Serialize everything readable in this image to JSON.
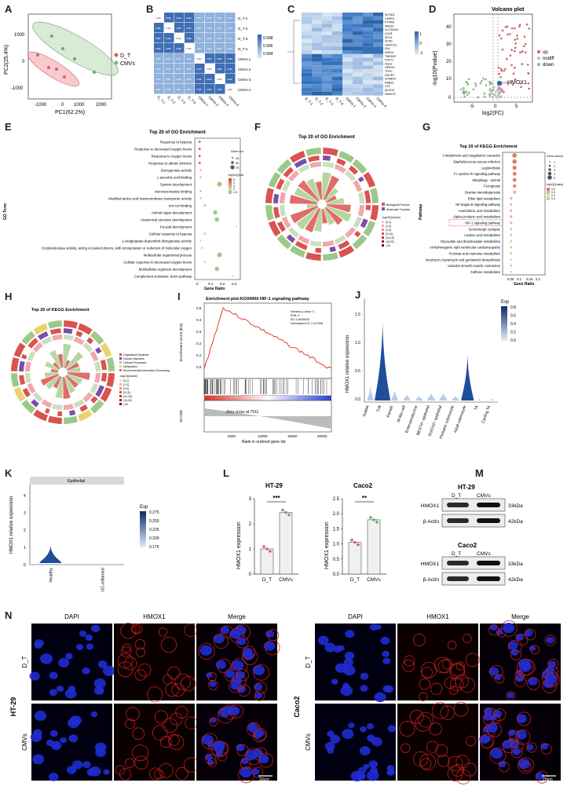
{
  "panels": {
    "A": {
      "label": "A",
      "xlabel": "PC1(62.2%)",
      "ylabel": "PC2(25.4%)",
      "xticks": [
        "-1000",
        "0",
        "1000",
        "2000"
      ],
      "yticks": [
        "1000",
        "0",
        "-1000"
      ],
      "legend": [
        {
          "name": "D_T",
          "color": "#d95f6a"
        },
        {
          "name": "CMVs",
          "color": "#7fb77e"
        }
      ]
    },
    "B": {
      "label": "B",
      "rows": [
        "D_T-1",
        "D_T-2",
        "D_T-3",
        "D_T-4",
        "CMVs-1",
        "CMVs-2",
        "CMVs-3",
        "CMVs-4"
      ],
      "cols": [
        "D_T-1",
        "D_T-2",
        "D_T-3",
        "D_T-4",
        "CMVs-1",
        "CMVs-2",
        "CMVs-3",
        "CMVs-4"
      ],
      "scale": [
        "0.998",
        "0.996",
        "0.994"
      ]
    },
    "C": {
      "label": "C",
      "genes": [
        "SLFN11",
        "CMPK2",
        "PTPRD",
        "FADS2",
        "SLC30A10",
        "LDLR",
        "MT1X",
        "SC5D",
        "HMGCS1",
        "IDI1",
        "INSIG1",
        "TMEM97",
        "FDFT1",
        "SQLE",
        "HMOX1",
        "TFRC",
        "DHCR7",
        "STARD4",
        "RAB32",
        "LSS",
        "ALDOC",
        "HMGCR"
      ],
      "cols": [
        "D_T-1",
        "D_T-2",
        "D_T-3",
        "D_T-4",
        "CMVs-1",
        "CMVs-2",
        "CMVs-3",
        "CMVs-4"
      ],
      "scale": [
        "1",
        "0",
        "-1"
      ]
    },
    "D": {
      "label": "D",
      "title": "Volcano plot",
      "xlabel": "log2(FC)",
      "ylabel": "-log10(Pvalue)",
      "yticks": [
        "40",
        "30",
        "20",
        "10",
        "0"
      ],
      "xticks": [
        "-5",
        "0",
        "5"
      ],
      "annot": "HMOX1",
      "legend": [
        {
          "name": "up",
          "color": "#d95f6a"
        },
        {
          "name": "nodiff",
          "color": "#bbbbbb"
        },
        {
          "name": "down",
          "color": "#7fb77e"
        }
      ]
    },
    "E": {
      "label": "E",
      "title": "Top 20 of GO Enrichment",
      "ylabel": "GO Term",
      "xlabel": "Gene Ratio",
      "xticks": [
        "0",
        "0.1",
        "0.2",
        "0.3"
      ],
      "terms": [
        "Response to hypoxia",
        "Response to decreased oxygen levels",
        "Response to oxygen levels",
        "Response to abiotic stimulus",
        "Dioxygenase activity",
        "L-ascorbic acid binding",
        "System development",
        "Monosaccharide binding",
        "Modified amino acid transmembrane transporter activity",
        "Iron ion binding",
        "Animal organ development",
        "Anatomical structure development",
        "Fat pad development",
        "Cellular response to hypoxia",
        "2-oxoglutarate-dependent dioxygenase activity",
        "Oxidoreductase activity, acting on paired donors, with incorporation or reduction of molecular oxygen",
        "Multicellular organismal process",
        "Cellular response to decreased oxygen levels",
        "Multicellular organism development",
        "Complement activation, lectin pathway"
      ],
      "legend_title": "Gene number",
      "size_legend": [
        "25",
        "50",
        "75"
      ],
      "color_title": "-log10(Qvalue)",
      "color_ticks": [
        "5",
        "4",
        "3",
        "2",
        "1.5"
      ]
    },
    "F": {
      "label": "F",
      "title": "Top 20 of GO Enrichment",
      "legend": [
        "Biological Process",
        "Molecular Function"
      ],
      "qtitle": "-log10(Qvalue)",
      "qbins": [
        "(0,1]",
        "(1,2]",
        "(2,5]",
        "(5,10]",
        "(10,15]",
        "(15,20]",
        ">20"
      ]
    },
    "G": {
      "label": "G",
      "title": "Top 20 of KEGG Enrichment",
      "ylabel": "Pathway",
      "xlabel": "Gene Ratio",
      "xticks": [
        "0.05",
        "0.1",
        "0.15",
        "0.2"
      ],
      "terms": [
        "Complement and coagulation cascades",
        "Staphylococcus aureus infection",
        "Legionellosis",
        "Fc epsilon RI signaling pathway",
        "Mitophagy - animal",
        "Ferroptosis",
        "Ovarian steroidogenesis",
        "Ether lipid metabolism",
        "NF-kappa B signaling pathway",
        "Arachidonic acid metabolism",
        "Alpha-Linolenic acid metabolism",
        "HIF-1 signaling pathway",
        "Serotonergic synapse",
        "Linoleic acid metabolism",
        "Glyoxylate and dicarboxylate metabolism",
        "Arrhythmogenic right ventricular cardiomyopathy",
        "Fructose and mannose metabolism",
        "Neomycin, kanamycin and gentamicin biosynthesis",
        "Vascular smooth muscle contraction",
        "Caffeine metabolism"
      ],
      "legend_title": "Gene number",
      "size_legend": [
        "1",
        "2",
        "3",
        "4",
        "5"
      ],
      "color_title": "-log10(Qvalue)",
      "color_ticks": [
        "0.6",
        "0.5",
        "0.4",
        "0.3"
      ]
    },
    "H": {
      "label": "H",
      "title": "Top 20 of KEGG Enrichment",
      "legend": [
        "Organismal Systems",
        "Human Diseases",
        "Cellular Processes",
        "Metabolism",
        "Environmental Information Processing"
      ],
      "qtitle": "-log10(Qvalue)",
      "qbins": [
        "(0,1]",
        "(1,2]",
        "(2,5]",
        "(5,10]",
        "(10,15]",
        "(15,20]",
        ">20"
      ]
    },
    "I": {
      "label": "I",
      "title": "Enrichment plot:KO04066 HIF-1 signaling pathway",
      "ylabel": "Enrichment score (ES)",
      "ylabel2": "SCORE",
      "xlabel": "Rank in ordered gene list",
      "stats": [
        "Nominal p-value: 0",
        "FDR: 0",
        "ES: 0.5635576",
        "Normalized ES: 2.017938"
      ],
      "zero_cross": "Zero cross at 7011",
      "xticks": [
        "5000",
        "10000",
        "15000",
        "20000"
      ],
      "yticks": [
        "0.5",
        "0.4",
        "0.3",
        "0.2",
        "0.1",
        "0.0"
      ]
    },
    "J": {
      "label": "J",
      "ylabel": "HMOX1 relative expression",
      "legend_title": "Exp",
      "yticks": [
        "1.5",
        "1.0",
        "0.5",
        "0.0"
      ],
      "scale": [
        "0.8",
        "0.6",
        "0.4",
        "0.2",
        "0.0"
      ],
      "cells": [
        "Goblet",
        "Tuft",
        "Paneth",
        "M-like cell",
        "Enteroendocrine",
        "BEST4+ epithelial",
        "DUOX2+ epithelial",
        "Pediatric colonocyte",
        "Adult colonocyte",
        "TA",
        "Cycling TA"
      ]
    },
    "K": {
      "label": "K",
      "ylabel": "HMOX1 relative expression",
      "header": "Epithelial",
      "legend_title": "Exp",
      "yticks": [
        "4",
        "3",
        "2",
        "1",
        "0"
      ],
      "scale": [
        "0.275",
        "0.250",
        "0.225",
        "0.200",
        "0.175"
      ],
      "groups": [
        "Healthy",
        "UC-inflamed"
      ]
    },
    "L": {
      "label": "L",
      "ylabel": "HMOX1 expression",
      "plots": [
        {
          "title": "HT-29",
          "sig": "***",
          "yticks": [
            "3",
            "2",
            "1",
            "0"
          ],
          "ymax": 3,
          "groups": [
            "D_T",
            "CMVs"
          ],
          "values": [
            1.0,
            2.45
          ]
        },
        {
          "title": "Caco2",
          "sig": "**",
          "yticks": [
            "2.5",
            "2.0",
            "1.5",
            "1.0",
            "0.5",
            "0.0"
          ],
          "ymax": 2.5,
          "groups": [
            "D_T",
            "CMVs"
          ],
          "values": [
            1.05,
            1.8
          ]
        }
      ]
    },
    "M": {
      "label": "M",
      "blots": [
        {
          "title": "HT-29",
          "cols": [
            "D_T",
            "CMVs"
          ],
          "rows": [
            {
              "name": "HMOX1",
              "kda": "33kDa"
            },
            {
              "name": "β-Actin",
              "kda": "42kDa"
            }
          ]
        },
        {
          "title": "Caco2",
          "cols": [
            "D_T",
            "CMVs"
          ],
          "rows": [
            {
              "name": "HMOX1",
              "kda": "33kDa"
            },
            {
              "name": "β-Actin",
              "kda": "42kDa"
            }
          ]
        }
      ]
    },
    "N": {
      "label": "N",
      "left": {
        "cell": "HT-29",
        "cols": [
          "DAPI",
          "HMOX1",
          "Merge"
        ],
        "rows": [
          "D_T",
          "CMVs"
        ],
        "scalebar": "20μm"
      },
      "right": {
        "cell": "Caco2",
        "cols": [
          "DAPI",
          "HMOX1",
          "Merge"
        ],
        "rows": [
          "D_T",
          "CMVs"
        ],
        "scalebar": "20μm"
      }
    }
  }
}
